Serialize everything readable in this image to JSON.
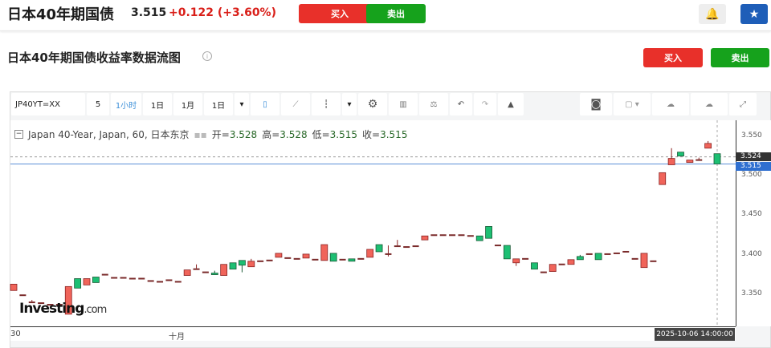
{
  "header": {
    "title": "日本40年期国债",
    "price": "3.515",
    "change": "+0.122 (+3.60%)",
    "buy": "买入",
    "sell": "卖出",
    "alert_icon": "bell-plus-icon",
    "watch_icon": "star-icon"
  },
  "section": {
    "title": "日本40年期国债收益率数据流图",
    "buy": "买入",
    "sell": "卖出"
  },
  "toolbar": {
    "symbol": "JP40YT=XX",
    "items": [
      "5",
      "1小时",
      "1日",
      "1月",
      "1日"
    ],
    "active": "1小时"
  },
  "legend": {
    "name": "Japan 40-Year, Japan, 60, 日本东京",
    "open_label": "开=",
    "open": "3.528",
    "high_label": "高=",
    "high": "3.528",
    "low_label": "低=",
    "low": "3.515",
    "close_label": "收=",
    "close": "3.515"
  },
  "colors": {
    "up": "#f0645a",
    "down": "#1dbf73",
    "accent": "#1e5eb8"
  },
  "chart_data": {
    "type": "candlestick",
    "ylim": [
      3.32,
      3.57
    ],
    "yticks": [
      "3.550",
      "3.500",
      "3.450",
      "3.400",
      "3.350"
    ],
    "xticks": [
      "30",
      "十月"
    ],
    "last_price": "3.524",
    "current_price": "3.515",
    "cursor_time": "2025-10-06 14:00:00",
    "candles": [
      [
        3.355,
        3.363,
        3.355,
        3.363
      ],
      [
        3.35,
        3.35,
        3.35,
        3.35
      ],
      [
        3.341,
        3.343,
        3.341,
        3.341
      ],
      [
        3.34,
        3.34,
        3.34,
        3.34
      ],
      [
        3.338,
        3.338,
        3.338,
        3.338
      ],
      [
        3.338,
        3.338,
        3.338,
        3.338
      ],
      [
        3.325,
        3.36,
        3.325,
        3.36
      ],
      [
        3.37,
        3.37,
        3.358,
        3.358
      ],
      [
        3.362,
        3.37,
        3.362,
        3.37
      ],
      [
        3.372,
        3.372,
        3.365,
        3.365
      ],
      [
        3.376,
        3.376,
        3.376,
        3.376
      ],
      [
        3.372,
        3.372,
        3.372,
        3.372
      ],
      [
        3.372,
        3.372,
        3.372,
        3.372
      ],
      [
        3.371,
        3.371,
        3.371,
        3.371
      ],
      [
        3.371,
        3.371,
        3.371,
        3.371
      ],
      [
        3.368,
        3.368,
        3.368,
        3.368
      ],
      [
        3.367,
        3.367,
        3.367,
        3.367
      ],
      [
        3.369,
        3.369,
        3.369,
        3.369
      ],
      [
        3.367,
        3.367,
        3.367,
        3.367
      ],
      [
        3.374,
        3.381,
        3.374,
        3.381
      ],
      [
        3.383,
        3.388,
        3.383,
        3.383
      ],
      [
        3.379,
        3.379,
        3.379,
        3.379
      ],
      [
        3.377,
        3.38,
        3.375,
        3.375
      ],
      [
        3.374,
        3.388,
        3.374,
        3.388
      ],
      [
        3.39,
        3.39,
        3.382,
        3.382
      ],
      [
        3.393,
        3.393,
        3.378,
        3.387
      ],
      [
        3.385,
        3.395,
        3.385,
        3.392
      ],
      [
        3.393,
        3.393,
        3.393,
        3.393
      ],
      [
        3.394,
        3.394,
        3.394,
        3.394
      ],
      [
        3.397,
        3.402,
        3.397,
        3.402
      ],
      [
        3.397,
        3.397,
        3.397,
        3.397
      ],
      [
        3.396,
        3.396,
        3.396,
        3.396
      ],
      [
        3.396,
        3.401,
        3.396,
        3.401
      ],
      [
        3.395,
        3.395,
        3.395,
        3.395
      ],
      [
        3.393,
        3.413,
        3.393,
        3.413
      ],
      [
        3.402,
        3.402,
        3.392,
        3.392
      ],
      [
        3.395,
        3.395,
        3.395,
        3.395
      ],
      [
        3.395,
        3.395,
        3.392,
        3.392
      ],
      [
        3.396,
        3.396,
        3.396,
        3.396
      ],
      [
        3.397,
        3.407,
        3.397,
        3.407
      ],
      [
        3.413,
        3.413,
        3.404,
        3.404
      ],
      [
        3.402,
        3.412,
        3.398,
        3.402
      ],
      [
        3.412,
        3.419,
        3.412,
        3.412
      ],
      [
        3.411,
        3.411,
        3.411,
        3.411
      ],
      [
        3.412,
        3.412,
        3.412,
        3.412
      ],
      [
        3.419,
        3.424,
        3.419,
        3.424
      ],
      [
        3.426,
        3.426,
        3.426,
        3.426
      ],
      [
        3.426,
        3.426,
        3.426,
        3.426
      ],
      [
        3.426,
        3.426,
        3.426,
        3.426
      ],
      [
        3.426,
        3.426,
        3.426,
        3.426
      ],
      [
        3.425,
        3.425,
        3.425,
        3.425
      ],
      [
        3.424,
        3.424,
        3.418,
        3.418
      ],
      [
        3.436,
        3.436,
        3.421,
        3.421
      ],
      [
        3.413,
        3.413,
        3.413,
        3.413
      ],
      [
        3.412,
        3.412,
        3.395,
        3.395
      ],
      [
        3.39,
        3.395,
        3.386,
        3.395
      ],
      [
        3.396,
        3.396,
        3.396,
        3.396
      ],
      [
        3.39,
        3.39,
        3.382,
        3.382
      ],
      [
        3.379,
        3.379,
        3.379,
        3.379
      ],
      [
        3.379,
        3.388,
        3.379,
        3.388
      ],
      [
        3.389,
        3.389,
        3.389,
        3.389
      ],
      [
        3.388,
        3.394,
        3.388,
        3.394
      ],
      [
        3.398,
        3.4,
        3.394,
        3.394
      ],
      [
        3.402,
        3.402,
        3.402,
        3.402
      ],
      [
        3.402,
        3.402,
        3.394,
        3.394
      ],
      [
        3.402,
        3.402,
        3.402,
        3.402
      ],
      [
        3.403,
        3.403,
        3.403,
        3.403
      ],
      [
        3.405,
        3.405,
        3.405,
        3.405
      ],
      [
        3.396,
        3.396,
        3.396,
        3.396
      ],
      [
        3.384,
        3.402,
        3.384,
        3.402
      ],
      [
        3.393,
        3.393,
        3.393,
        3.393
      ],
      [
        3.489,
        3.504,
        3.489,
        3.504
      ],
      [
        3.514,
        3.535,
        3.514,
        3.522
      ],
      [
        3.53,
        3.53,
        3.525,
        3.525
      ],
      [
        3.517,
        3.52,
        3.517,
        3.52
      ],
      [
        3.521,
        3.523,
        3.521,
        3.521
      ],
      [
        3.535,
        3.544,
        3.535,
        3.541
      ],
      [
        3.528,
        3.528,
        3.515,
        3.515
      ]
    ]
  },
  "logo": {
    "text": "Investing",
    "suffix": ".com"
  }
}
